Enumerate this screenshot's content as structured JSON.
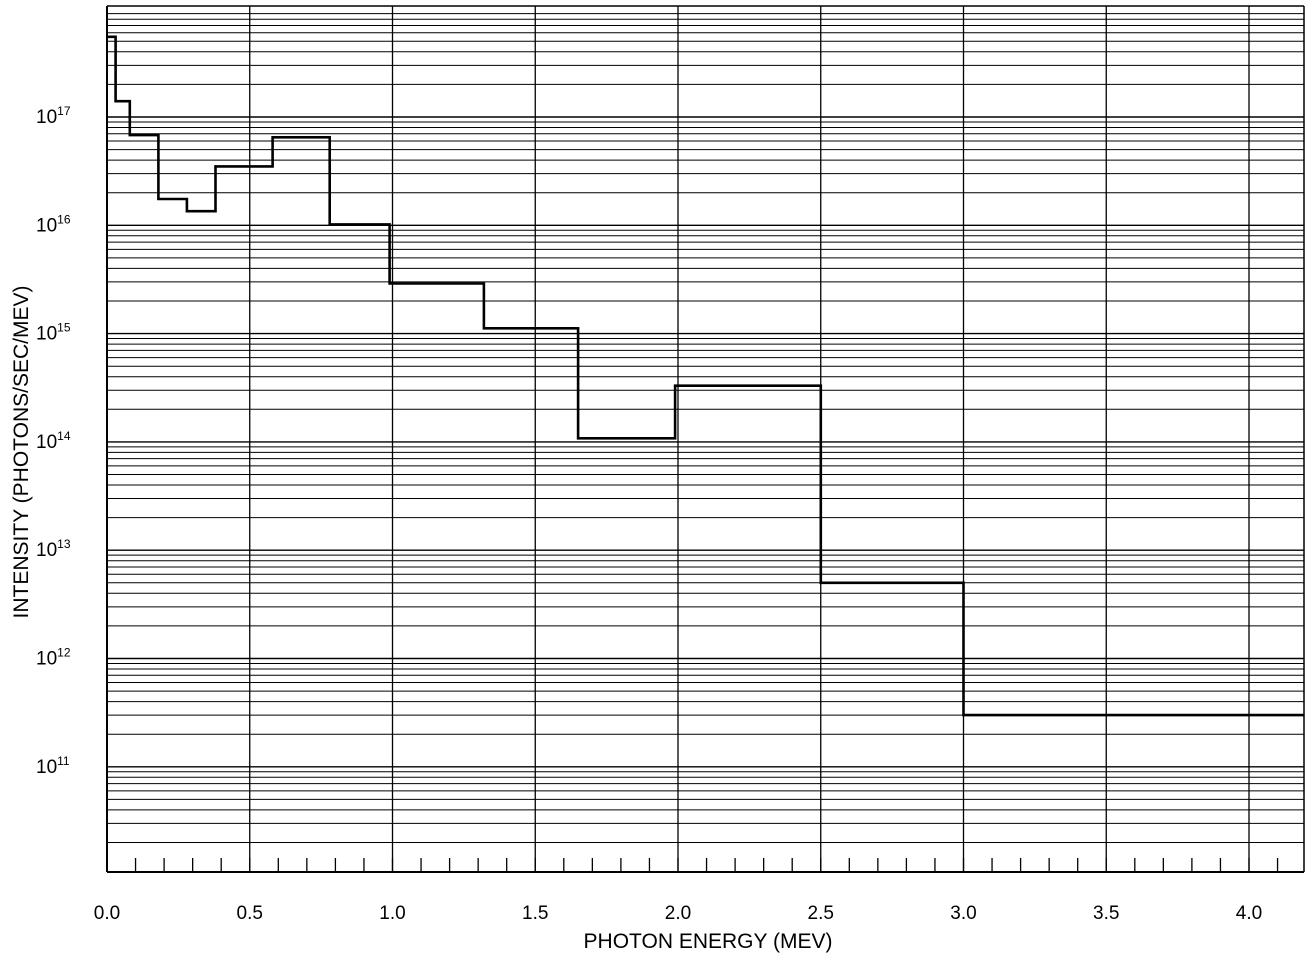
{
  "chart_data": {
    "type": "line",
    "line_shape": "step",
    "title": "",
    "xlabel": "PHOTON ENERGY (MEV)",
    "ylabel": "INTENSITY (PHOTONS/SEC/MEV)",
    "x_scale": "linear",
    "y_scale": "log",
    "xlim": [
      0.0,
      4.2
    ],
    "ylim": [
      10000000000.0,
      1e+18
    ],
    "x_ticks": [
      "0.0",
      "0.5",
      "1.0",
      "1.5",
      "2.0",
      "2.5",
      "3.0",
      "3.5",
      "4.0"
    ],
    "y_ticks": [
      {
        "base": "10",
        "exp": "17"
      },
      {
        "base": "10",
        "exp": "16"
      },
      {
        "base": "10",
        "exp": "15"
      },
      {
        "base": "10",
        "exp": "14"
      },
      {
        "base": "10",
        "exp": "13"
      },
      {
        "base": "10",
        "exp": "12"
      },
      {
        "base": "10",
        "exp": "11"
      }
    ],
    "grid": true,
    "minor_x_tick_step": 0.1,
    "series": [
      {
        "bins": [
          {
            "x0": 0.0,
            "x1": 0.03,
            "y": 5.5e+17
          },
          {
            "x0": 0.03,
            "x1": 0.08,
            "y": 1.4e+17
          },
          {
            "x0": 0.08,
            "x1": 0.18,
            "y": 6.8e+16
          },
          {
            "x0": 0.18,
            "x1": 0.28,
            "y": 1.75e+16
          },
          {
            "x0": 0.28,
            "x1": 0.38,
            "y": 1.35e+16
          },
          {
            "x0": 0.38,
            "x1": 0.58,
            "y": 3.5e+16
          },
          {
            "x0": 0.58,
            "x1": 0.78,
            "y": 6.5e+16
          },
          {
            "x0": 0.78,
            "x1": 0.99,
            "y": 1.02e+16
          },
          {
            "x0": 0.99,
            "x1": 1.32,
            "y": 2900000000000000.0
          },
          {
            "x0": 1.32,
            "x1": 1.65,
            "y": 1120000000000000.0
          },
          {
            "x0": 1.65,
            "x1": 1.99,
            "y": 108000000000000.0
          },
          {
            "x0": 1.99,
            "x1": 2.5,
            "y": 330000000000000.0
          },
          {
            "x0": 2.5,
            "x1": 3.0,
            "y": 5000000000000.0
          },
          {
            "x0": 3.0,
            "x1": 4.2,
            "y": 300000000000.0
          }
        ]
      }
    ]
  }
}
